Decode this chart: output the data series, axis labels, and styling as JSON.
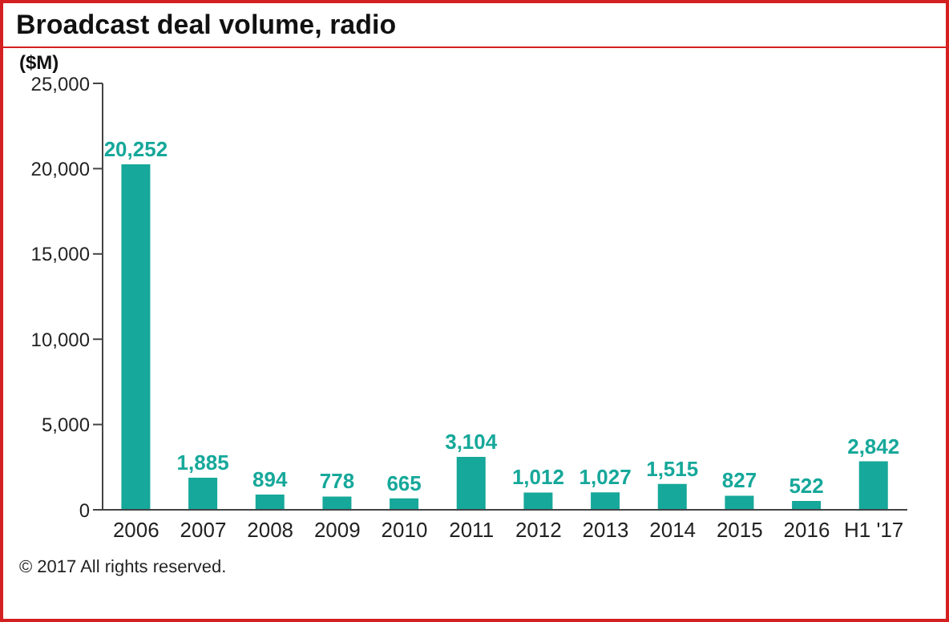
{
  "chart_data": {
    "type": "bar",
    "title": "Broadcast deal volume, radio",
    "ylabel": "($M)",
    "categories": [
      "2006",
      "2007",
      "2008",
      "2009",
      "2010",
      "2011",
      "2012",
      "2013",
      "2014",
      "2015",
      "2016",
      "H1 '17"
    ],
    "values": [
      20252,
      1885,
      894,
      778,
      665,
      3104,
      1012,
      1027,
      1515,
      827,
      522,
      2842
    ],
    "color": "#16a89a",
    "ylim": [
      0,
      25000
    ],
    "yticks": [
      {
        "value": 0,
        "label": "0"
      },
      {
        "value": 5000,
        "label": "5,000"
      },
      {
        "value": 10000,
        "label": "10,000"
      },
      {
        "value": 15000,
        "label": "15,000"
      },
      {
        "value": 20000,
        "label": "20,000"
      },
      {
        "value": 25000,
        "label": "25,000"
      }
    ],
    "value_labels": [
      "20,252",
      "1,885",
      "894",
      "778",
      "665",
      "3,104",
      "1,012",
      "1,027",
      "1,515",
      "827",
      "522",
      "2,842"
    ],
    "annotations": [
      "© 2017 All rights reserved."
    ]
  }
}
